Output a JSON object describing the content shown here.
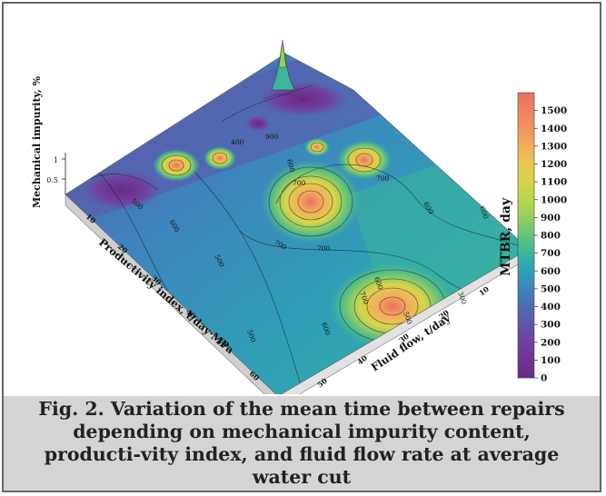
{
  "caption": "Fig. 2. Variation of the mean time between repairs depending on mechanical impurity content, producti-vity index, and fluid flow rate at average water cut",
  "chart_data": {
    "type": "surface",
    "title": "",
    "zlabel": "Mechanical impurity, %",
    "xlabel": "Productivity index, t/day·MPa",
    "ylabel": "Fluid flow, t/day",
    "colorbar_label": "MTBR, day",
    "zticks": [
      "0.5",
      "1"
    ],
    "xticks": [
      "10",
      "20",
      "30",
      "40",
      "50",
      "60"
    ],
    "yticks": [
      "10",
      "20",
      "30",
      "40",
      "50",
      "60"
    ],
    "colorbar_ticks": [
      0,
      100,
      200,
      300,
      400,
      500,
      600,
      700,
      800,
      900,
      1000,
      1100,
      1200,
      1300,
      1400,
      1500
    ],
    "colorbar_range": [
      0,
      1600
    ],
    "contour_labels": [
      "500",
      "600",
      "500",
      "700",
      "700",
      "700",
      "700",
      "600",
      "600",
      "700",
      "600",
      "600",
      "500",
      "500",
      "900",
      "400",
      "300",
      "600"
    ],
    "colors": {
      "0": "#6a2a86",
      "100": "#71368f",
      "200": "#7040a0",
      "300": "#5d55aa",
      "400": "#4e6ab5",
      "500": "#3f84be",
      "600": "#2fa0b6",
      "700": "#3bb59b",
      "800": "#63c47a",
      "900": "#93cf5c",
      "1000": "#bad54b",
      "1100": "#d7d44b",
      "1200": "#eac850",
      "1300": "#f2ae5a",
      "1400": "#f1935e",
      "1500": "#ec7064"
    }
  }
}
